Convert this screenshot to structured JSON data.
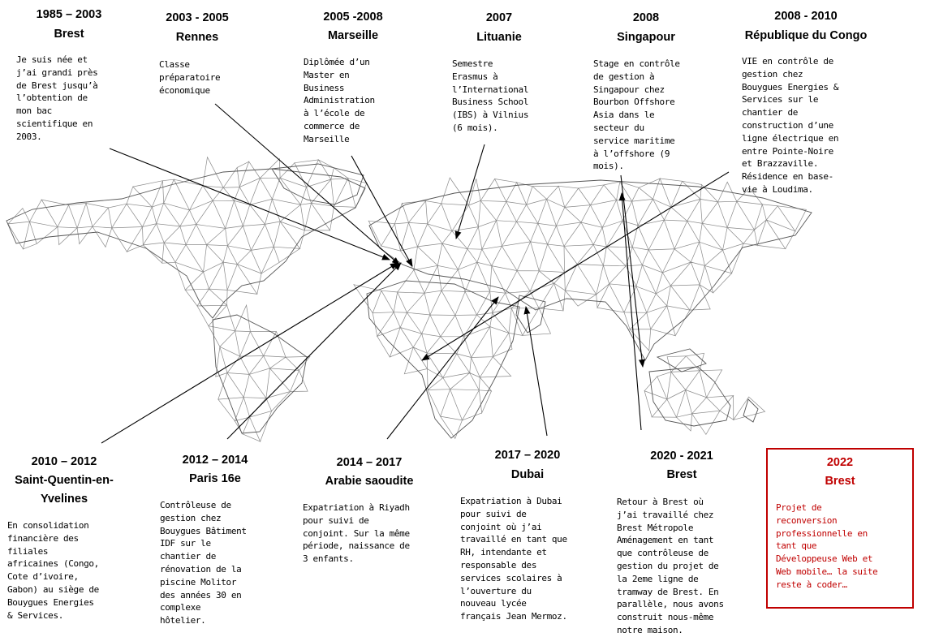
{
  "timeline": [
    {
      "id": "brest-1985",
      "years": "1985 – 2003",
      "place": "Brest",
      "text": "Je suis née et\nj’ai grandi près\nde Brest jusqu’à\nl’obtention de\nmon bac\nscientifique en\n2003."
    },
    {
      "id": "rennes",
      "years": "2003 - 2005",
      "place": "Rennes",
      "text": "Classe\npréparatoire\néconomique"
    },
    {
      "id": "marseille",
      "years": "2005 -2008",
      "place": "Marseille",
      "text": "Diplômée d’un\nMaster en\nBusiness\nAdministration\nà l’école de\ncommerce de\nMarseille"
    },
    {
      "id": "lituanie",
      "years": "2007",
      "place": "Lituanie",
      "text": "Semestre\nErasmus à\nl’International\nBusiness School\n(IBS) à Vilnius\n(6 mois)."
    },
    {
      "id": "singapour",
      "years": "2008",
      "place": "Singapour",
      "text": "Stage en contrôle\nde gestion à\nSingapour chez\nBourbon Offshore\nAsia dans le\nsecteur du\nservice maritime\nà l’offshore (9\nmois)."
    },
    {
      "id": "congo",
      "years": "2008 - 2010",
      "place": "République du Congo",
      "text": "VIE en contrôle de\ngestion chez\nBouygues Energies &\nServices sur le\nchantier de\nconstruction d’une\nligne électrique en\nentre Pointe-Noire\net Brazzaville.\nRésidence en base-\nvie à Loudima."
    },
    {
      "id": "sqy",
      "years": "2010 – 2012",
      "place": "Saint-Quentin-en-\nYvelines",
      "text": "En consolidation\nfinancière des\nfiliales\nafricaines (Congo,\nCote d’ivoire,\nGabon) au siège de\nBouygues Energies\n& Services."
    },
    {
      "id": "paris",
      "years": "2012 – 2014",
      "place": "Paris 16e",
      "text": "Contrôleuse de\ngestion chez\nBouygues Bâtiment\nIDF sur le\nchantier de\nrénovation de la\npiscine Molitor\ndes années 30 en\ncomplexe\nhôtelier."
    },
    {
      "id": "arabie",
      "years": "2014 – 2017",
      "place": "Arabie saoudite",
      "text": "Expatriation à Riyadh\npour suivi de\nconjoint. Sur la même\npériode, naissance de\n3 enfants."
    },
    {
      "id": "dubai",
      "years": "2017 – 2020",
      "place": "Dubai",
      "text": "Expatriation à Dubai\npour suivi de\nconjoint où j’ai\ntravaillé en tant que\nRH, intendante et\nresponsable des\nservices scolaires à\nl’ouverture du\nnouveau lycée\nfrançais Jean Mermoz."
    },
    {
      "id": "brest-2020",
      "years": "2020 - 2021",
      "place": "Brest",
      "text": "Retour à Brest où\nj’ai travaillé chez\nBrest Métropole\nAménagement en tant\nque contrôleuse de\ngestion du projet de\nla 2eme ligne de\ntramway de Brest. En\nparallèle, nous avons\nconstruit nous-même\nnotre maison."
    },
    {
      "id": "brest-2022",
      "years": "2022",
      "place": "Brest",
      "text": "Projet de\nreconversion\nprofessionnelle en\ntant que\nDéveloppeuse Web et\nWeb mobile… la suite\nreste à coder…"
    }
  ],
  "colors": {
    "highlight": "#c00000",
    "line": "#000000",
    "map_mesh": "#8a8a8a"
  }
}
